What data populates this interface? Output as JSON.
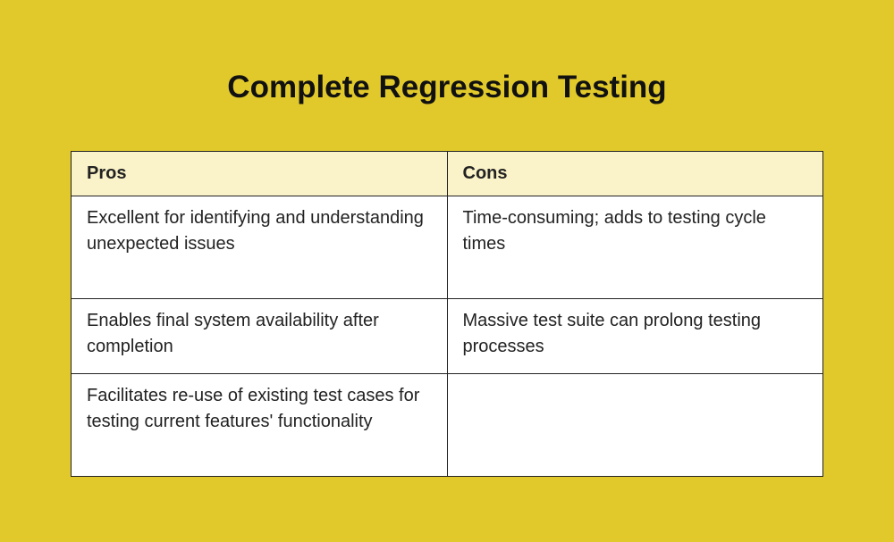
{
  "title": "Complete Regression Testing",
  "table": {
    "headers": [
      "Pros",
      "Cons"
    ],
    "rows": [
      [
        "Excellent for identifying and understanding unexpected issues",
        "Time-consuming; adds to testing cycle times"
      ],
      [
        "Enables final system availability after completion",
        "Massive test suite can prolong testing processes"
      ],
      [
        "Facilitates re-use of existing test cases for testing current features' functionality",
        ""
      ]
    ]
  },
  "colors": {
    "background": "#e2c92b",
    "header_background": "#faf2c8"
  }
}
